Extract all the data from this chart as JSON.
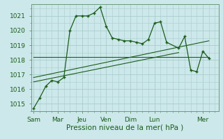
{
  "title": "",
  "xlabel": "Pression niveau de la mer( hPa )",
  "ylabel": "",
  "bg_color": "#cce8ea",
  "grid_color": "#aacccc",
  "line_color": "#1a5c1a",
  "ylim": [
    1014.5,
    1021.8
  ],
  "day_labels": [
    "Sam",
    "Mar",
    "Jeu",
    "Ven",
    "Dim",
    "Lun",
    "Mer"
  ],
  "day_positions": [
    0,
    2,
    4,
    6,
    8,
    10,
    14
  ],
  "series1_x": [
    0,
    0.5,
    1.0,
    1.5,
    2.0,
    2.5,
    3.0,
    3.5,
    4.0,
    4.5,
    5.0,
    5.5,
    6.0,
    6.5,
    7.0,
    7.5,
    8.0,
    8.5,
    9.0,
    9.5,
    10.0,
    10.5,
    11.0,
    12.0,
    12.5,
    13.0,
    13.5,
    14.0,
    14.5
  ],
  "series1_y": [
    1014.7,
    1015.4,
    1016.2,
    1016.6,
    1016.5,
    1016.8,
    1020.0,
    1021.0,
    1021.0,
    1021.0,
    1021.2,
    1021.6,
    1020.3,
    1019.5,
    1019.4,
    1019.3,
    1019.3,
    1019.2,
    1019.1,
    1019.4,
    1020.5,
    1020.6,
    1019.2,
    1018.8,
    1019.6,
    1017.3,
    1017.2,
    1018.6,
    1018.1
  ],
  "trend1_x": [
    0,
    14.5
  ],
  "trend1_y": [
    1018.2,
    1018.2
  ],
  "trend2_x": [
    0,
    12.0
  ],
  "trend2_y": [
    1016.5,
    1018.5
  ],
  "trend3_x": [
    0,
    14.5
  ],
  "trend3_y": [
    1016.8,
    1019.3
  ],
  "yticks": [
    1015,
    1016,
    1017,
    1018,
    1019,
    1020,
    1021
  ],
  "tick_fontsize": 6.5,
  "label_fontsize": 7.5,
  "xlim": [
    -0.2,
    15.3
  ]
}
